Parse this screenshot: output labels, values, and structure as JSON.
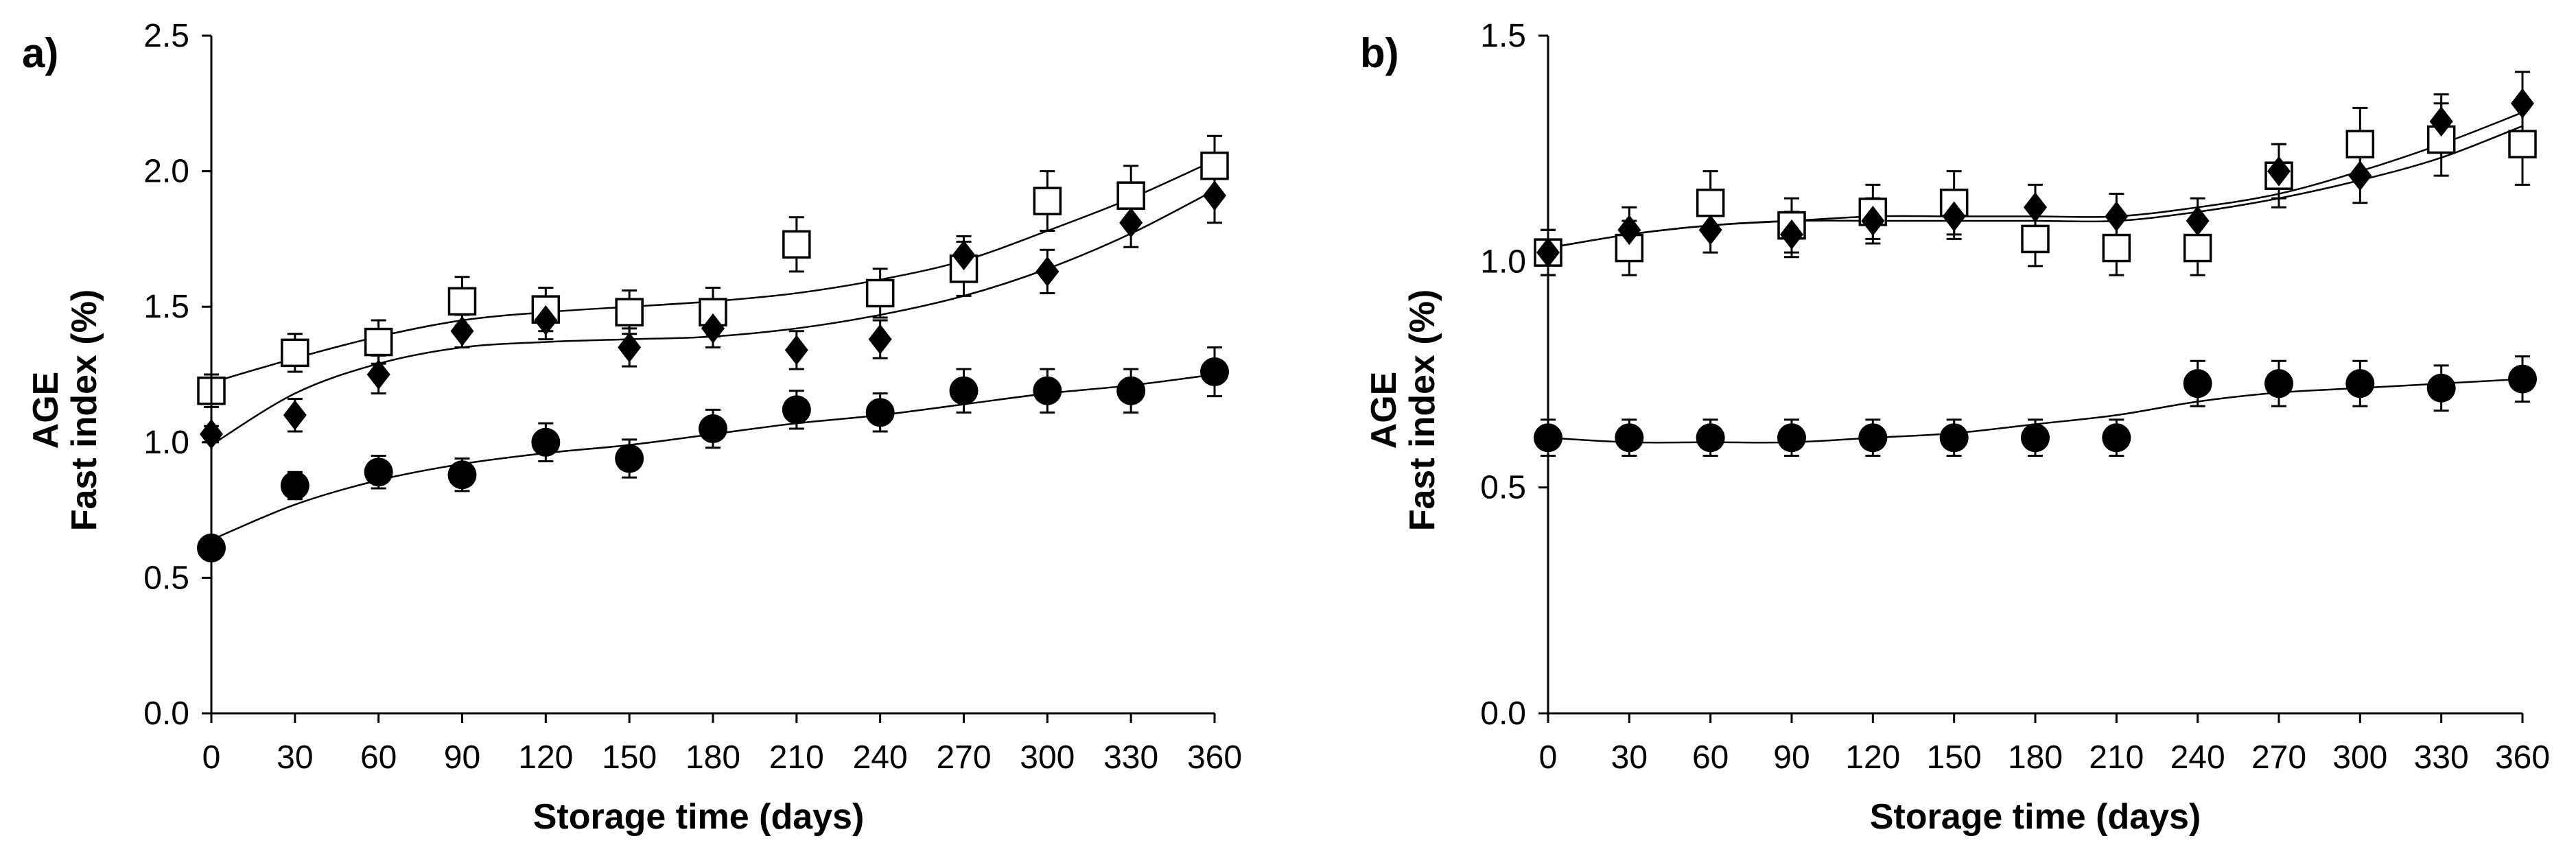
{
  "colors": {
    "ink": "#000000",
    "background": "#ffffff",
    "hollow_fill": "#ffffff"
  },
  "chart_data": [
    {
      "type": "scatter",
      "panel": "a)",
      "xlabel": "Storage time (days)",
      "ylabel_lines": [
        "AGE",
        "Fast index (%)"
      ],
      "xlim": [
        0,
        360
      ],
      "ylim": [
        0,
        2.5
      ],
      "xticks": [
        "0",
        "30",
        "60",
        "90",
        "120",
        "150",
        "180",
        "210",
        "240",
        "270",
        "300",
        "330",
        "360"
      ],
      "yticks": [
        "0.0",
        "0.5",
        "1.0",
        "1.5",
        "2.0",
        "2.5"
      ],
      "grid": false,
      "x": [
        0,
        30,
        60,
        90,
        120,
        150,
        180,
        210,
        240,
        270,
        300,
        330,
        360
      ],
      "series": [
        {
          "name": "open-square",
          "marker": "square-open",
          "values": [
            1.19,
            1.33,
            1.37,
            1.52,
            1.49,
            1.48,
            1.48,
            1.73,
            1.55,
            1.64,
            1.89,
            1.91,
            2.02
          ],
          "errors": [
            0.06,
            0.07,
            0.08,
            0.09,
            0.08,
            0.08,
            0.09,
            0.1,
            0.09,
            0.1,
            0.11,
            0.11,
            0.11
          ],
          "fit": [
            1.22,
            1.31,
            1.39,
            1.45,
            1.48,
            1.5,
            1.52,
            1.55,
            1.6,
            1.67,
            1.78,
            1.9,
            2.04
          ]
        },
        {
          "name": "filled-diamond",
          "marker": "diamond-filled",
          "values": [
            1.03,
            1.1,
            1.25,
            1.41,
            1.45,
            1.35,
            1.42,
            1.34,
            1.38,
            1.69,
            1.63,
            1.81,
            1.91
          ],
          "errors": [
            0.03,
            0.06,
            0.07,
            0.06,
            0.07,
            0.07,
            0.07,
            0.07,
            0.07,
            0.07,
            0.08,
            0.09,
            0.1
          ],
          "fit": [
            0.99,
            1.18,
            1.29,
            1.35,
            1.37,
            1.38,
            1.39,
            1.42,
            1.47,
            1.54,
            1.64,
            1.77,
            1.93
          ]
        },
        {
          "name": "filled-circle",
          "marker": "circle-filled",
          "values": [
            0.61,
            0.84,
            0.89,
            0.88,
            1.0,
            0.94,
            1.05,
            1.12,
            1.11,
            1.19,
            1.19,
            1.19,
            1.26
          ],
          "errors": [
            0.03,
            0.05,
            0.06,
            0.06,
            0.07,
            0.07,
            0.07,
            0.07,
            0.07,
            0.08,
            0.08,
            0.08,
            0.09
          ],
          "fit": [
            0.64,
            0.77,
            0.86,
            0.92,
            0.96,
            0.99,
            1.03,
            1.07,
            1.1,
            1.14,
            1.18,
            1.21,
            1.25
          ]
        }
      ]
    },
    {
      "type": "scatter",
      "panel": "b)",
      "xlabel": "Storage time (days)",
      "ylabel_lines": [
        "AGE",
        "Fast index (%)"
      ],
      "xlim": [
        0,
        360
      ],
      "ylim": [
        0,
        1.5
      ],
      "xticks": [
        "0",
        "30",
        "60",
        "90",
        "120",
        "150",
        "180",
        "210",
        "240",
        "270",
        "300",
        "330",
        "360"
      ],
      "yticks": [
        "0.0",
        "0.5",
        "1.0",
        "1.5"
      ],
      "grid": false,
      "x": [
        0,
        30,
        60,
        90,
        120,
        150,
        180,
        210,
        240,
        270,
        300,
        330,
        360
      ],
      "series": [
        {
          "name": "open-square",
          "marker": "square-open",
          "values": [
            1.02,
            1.03,
            1.13,
            1.08,
            1.11,
            1.13,
            1.05,
            1.03,
            1.03,
            1.19,
            1.26,
            1.27,
            1.26
          ],
          "errors": [
            0.05,
            0.06,
            0.07,
            0.06,
            0.06,
            0.07,
            0.06,
            0.06,
            0.06,
            0.07,
            0.08,
            0.08,
            0.09
          ],
          "fit": [
            1.03,
            1.06,
            1.08,
            1.09,
            1.09,
            1.09,
            1.09,
            1.09,
            1.11,
            1.14,
            1.18,
            1.23,
            1.3
          ]
        },
        {
          "name": "filled-diamond",
          "marker": "diamond-filled",
          "values": [
            1.02,
            1.07,
            1.07,
            1.06,
            1.09,
            1.1,
            1.12,
            1.1,
            1.09,
            1.2,
            1.19,
            1.31,
            1.35
          ],
          "errors": [
            0.05,
            0.05,
            0.05,
            0.05,
            0.05,
            0.05,
            0.05,
            0.05,
            0.05,
            0.06,
            0.06,
            0.06,
            0.07
          ],
          "fit": [
            1.03,
            1.06,
            1.08,
            1.09,
            1.1,
            1.1,
            1.1,
            1.1,
            1.12,
            1.15,
            1.2,
            1.26,
            1.33
          ]
        },
        {
          "name": "filled-circle",
          "marker": "circle-filled",
          "values": [
            0.61,
            0.61,
            0.61,
            0.61,
            0.61,
            0.61,
            0.61,
            0.61,
            0.73,
            0.73,
            0.73,
            0.72,
            0.74
          ],
          "errors": [
            0.04,
            0.04,
            0.04,
            0.04,
            0.04,
            0.04,
            0.04,
            0.04,
            0.05,
            0.05,
            0.05,
            0.05,
            0.05
          ],
          "fit": [
            0.61,
            0.6,
            0.6,
            0.6,
            0.61,
            0.62,
            0.64,
            0.66,
            0.69,
            0.71,
            0.72,
            0.73,
            0.74
          ]
        }
      ]
    }
  ]
}
